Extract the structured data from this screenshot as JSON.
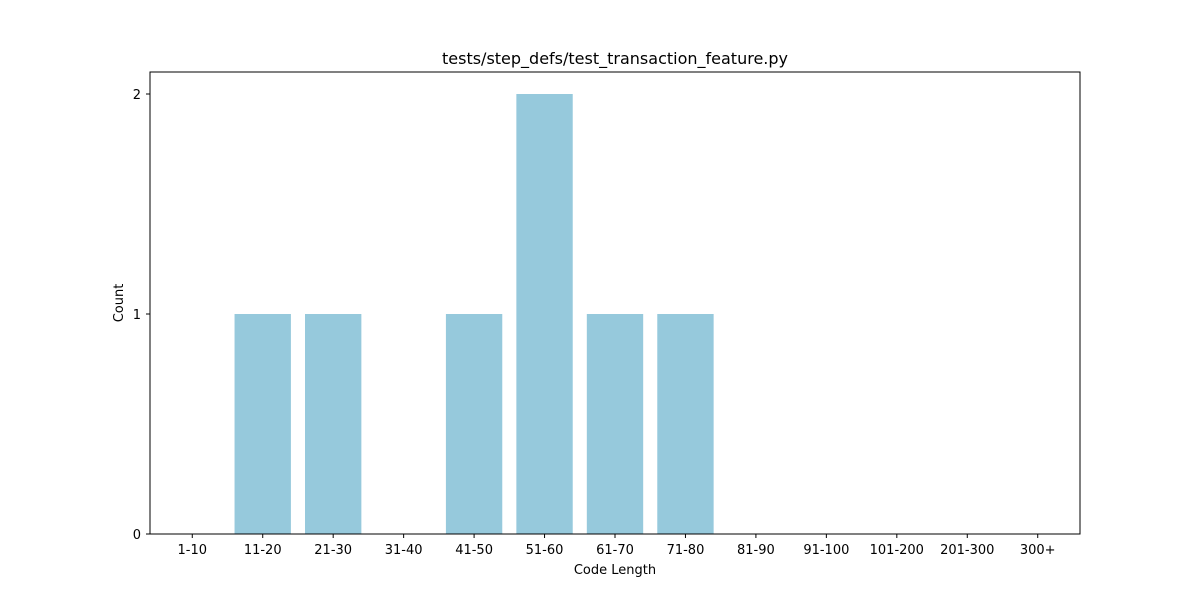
{
  "chart_data": {
    "type": "bar",
    "title": "tests/step_defs/test_transaction_feature.py",
    "xlabel": "Code Length",
    "ylabel": "Count",
    "categories": [
      "1-10",
      "11-20",
      "21-30",
      "31-40",
      "41-50",
      "51-60",
      "61-70",
      "71-80",
      "81-90",
      "91-100",
      "101-200",
      "201-300",
      "300+"
    ],
    "values": [
      0,
      1,
      1,
      0,
      1,
      2,
      1,
      1,
      0,
      0,
      0,
      0,
      0
    ],
    "ylim": [
      0,
      2.1
    ],
    "yticks": [
      0,
      1,
      2
    ],
    "grid": false,
    "bar_color": "#96c9dc"
  }
}
